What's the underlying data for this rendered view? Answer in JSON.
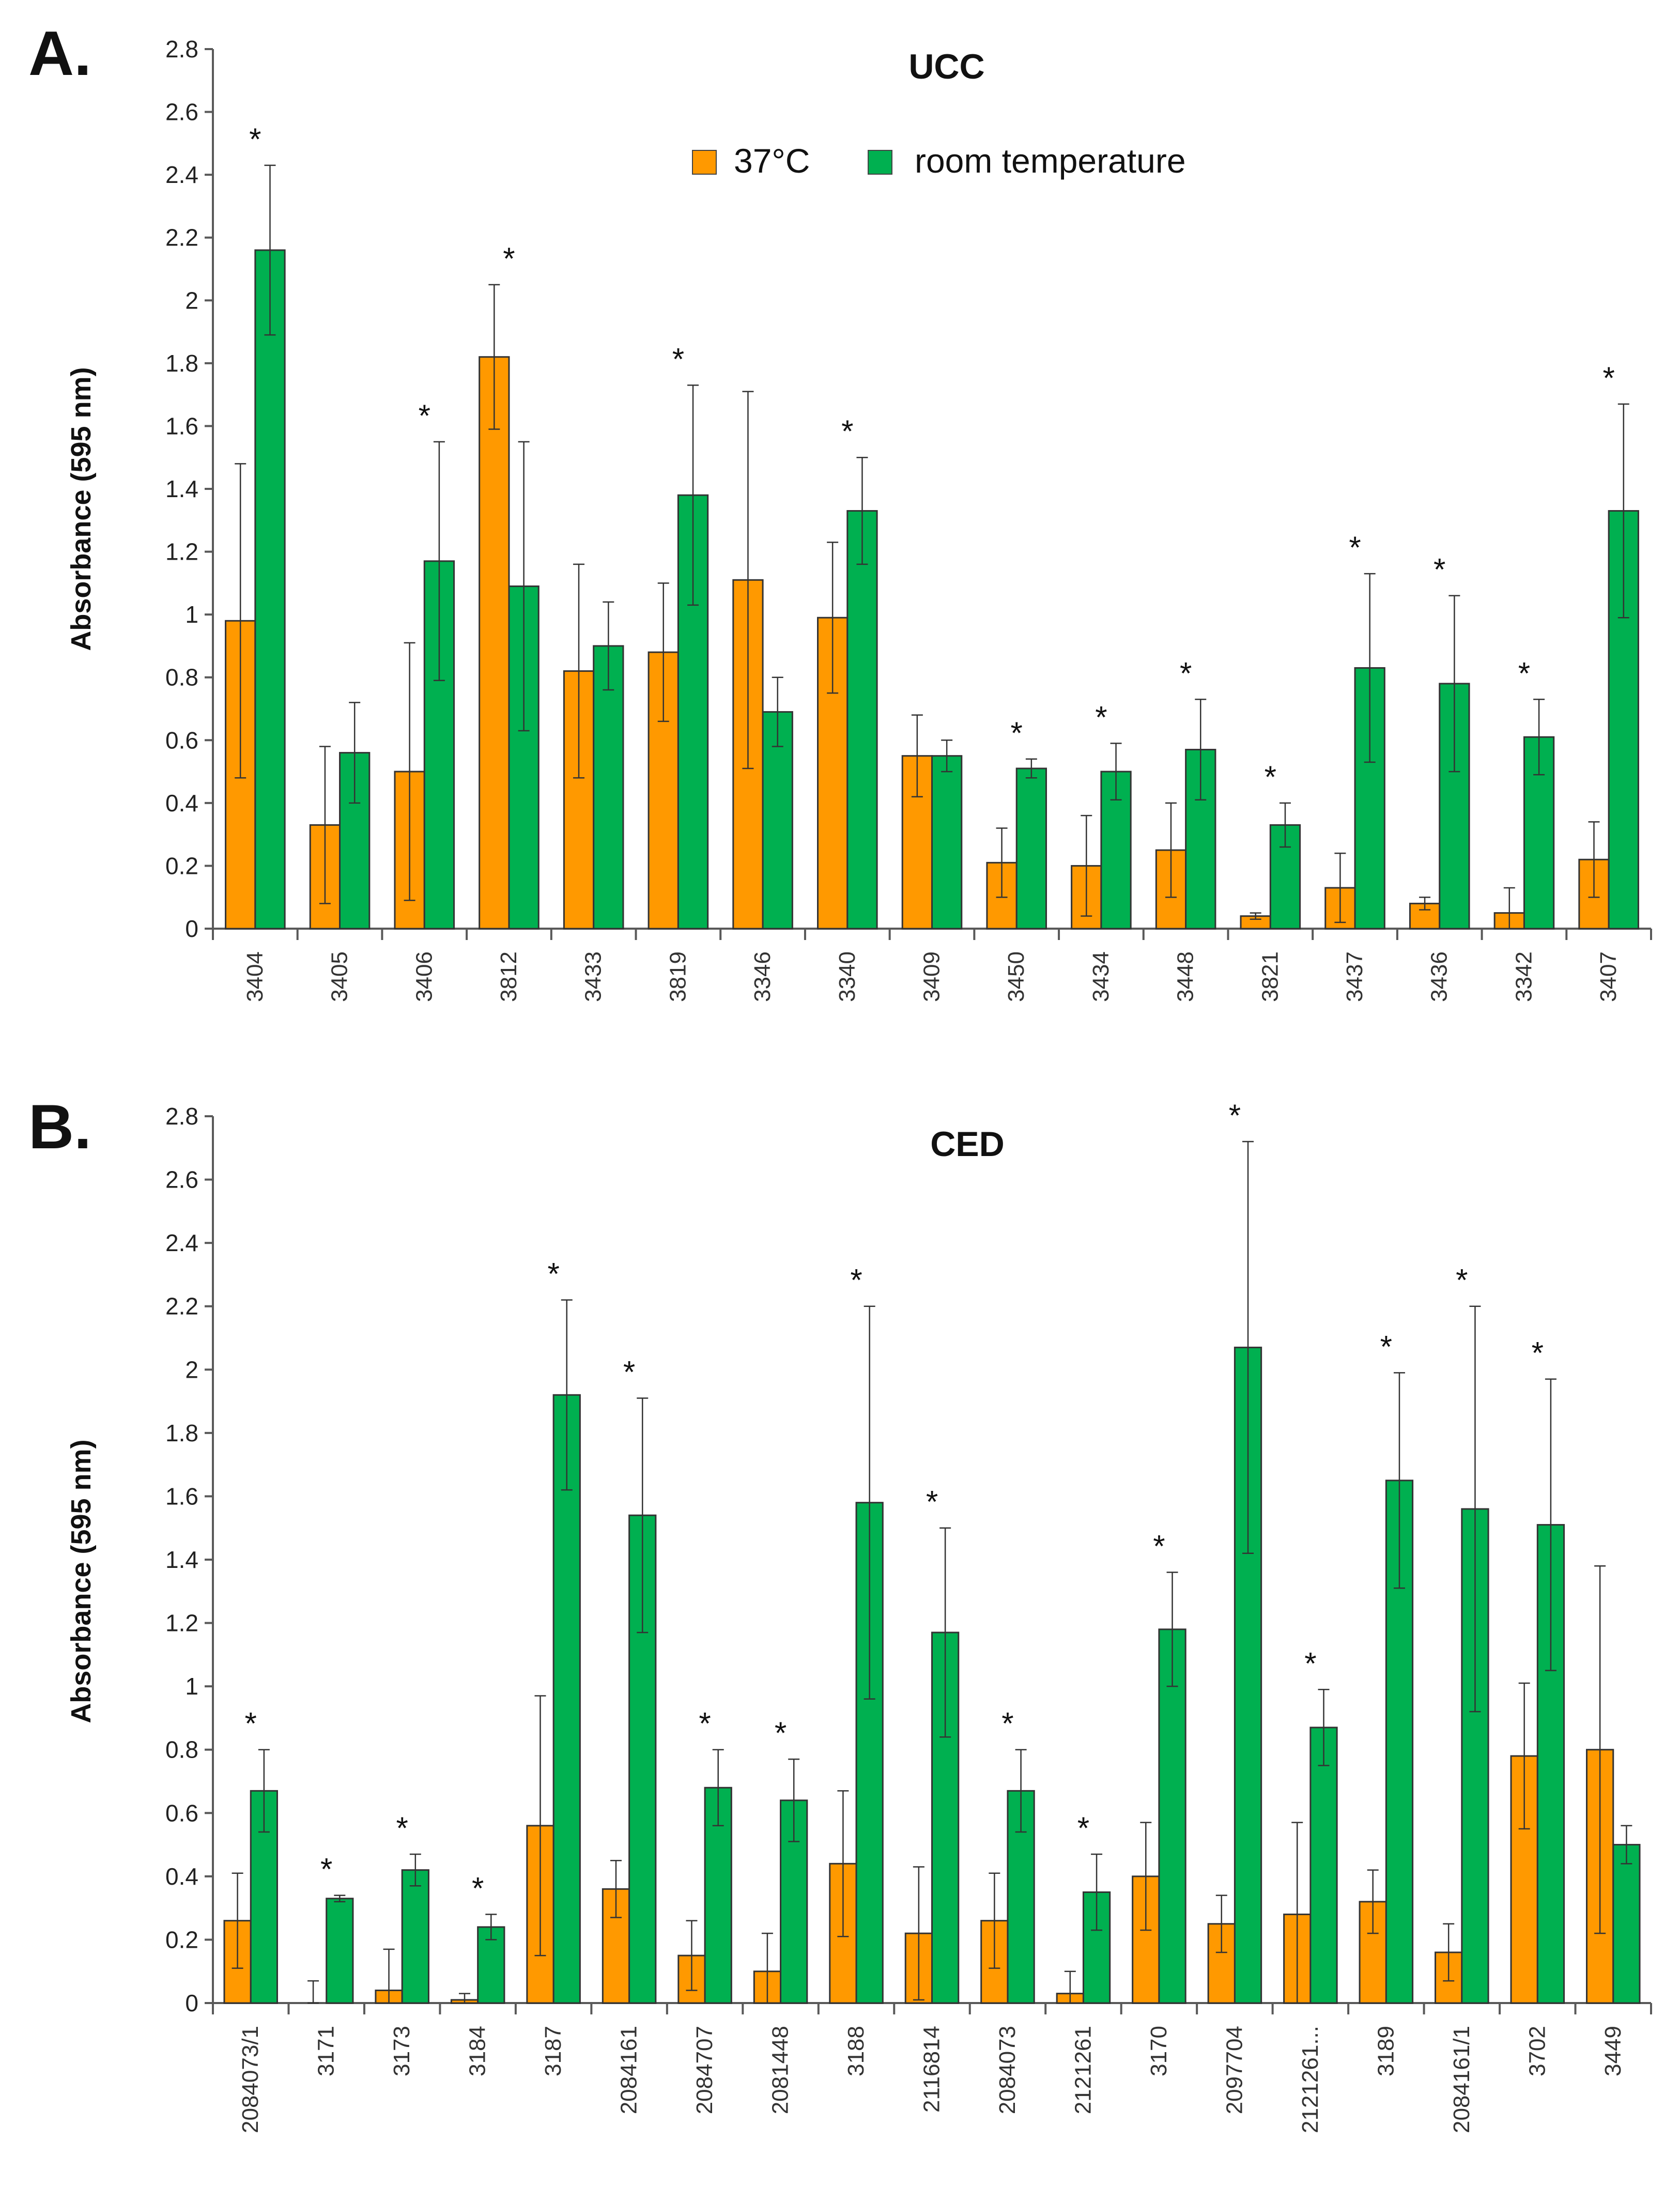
{
  "colors": {
    "s37": "#FF9900",
    "rt": "#00B050",
    "axis": "#595959",
    "err": "#333333"
  },
  "legend": {
    "items": [
      {
        "label": "37°C",
        "color": "#FF9900"
      },
      {
        "label": "room temperature",
        "color": "#00B050"
      }
    ]
  },
  "chart_data": [
    {
      "type": "bar",
      "panel": "A.",
      "title": "UCC",
      "ylabel": "Absorbance (595 nm)",
      "xlabel": "",
      "ylim": [
        0,
        2.8
      ],
      "yticks": [
        "0",
        "0.2",
        "0.4",
        "0.6",
        "0.8",
        "1",
        "1.2",
        "1.4",
        "1.6",
        "1.8",
        "2",
        "2.2",
        "2.4",
        "2.6",
        "2.8"
      ],
      "categories": [
        "3404",
        "3405",
        "3406",
        "3812",
        "3433",
        "3819",
        "3346",
        "3340",
        "3409",
        "3450",
        "3434",
        "3448",
        "3821",
        "3437",
        "3436",
        "3342",
        "3407"
      ],
      "series": [
        {
          "name": "37°C",
          "values": [
            0.98,
            0.33,
            0.5,
            1.82,
            0.82,
            0.88,
            1.11,
            0.99,
            0.55,
            0.21,
            0.2,
            0.25,
            0.04,
            0.13,
            0.08,
            0.05,
            0.22
          ],
          "errors": [
            0.5,
            0.25,
            0.41,
            0.23,
            0.34,
            0.22,
            0.6,
            0.24,
            0.13,
            0.11,
            0.16,
            0.15,
            0.01,
            0.11,
            0.02,
            0.08,
            0.12
          ]
        },
        {
          "name": "room temperature",
          "values": [
            2.16,
            0.56,
            1.17,
            1.09,
            0.9,
            1.38,
            0.69,
            1.33,
            0.55,
            0.51,
            0.5,
            0.57,
            0.33,
            0.83,
            0.78,
            0.61,
            1.33
          ],
          "errors": [
            0.27,
            0.16,
            0.38,
            0.46,
            0.14,
            0.35,
            0.11,
            0.17,
            0.05,
            0.03,
            0.09,
            0.16,
            0.07,
            0.3,
            0.28,
            0.12,
            0.34
          ]
        }
      ],
      "significance": [
        true,
        false,
        true,
        true,
        false,
        true,
        false,
        true,
        false,
        true,
        true,
        true,
        true,
        true,
        true,
        true,
        true
      ],
      "significance_marker": "*"
    },
    {
      "type": "bar",
      "panel": "B.",
      "title": "CED",
      "ylabel": "Absorbance (595 nm)",
      "xlabel": "",
      "ylim": [
        0,
        2.8
      ],
      "yticks": [
        "0",
        "0.2",
        "0.4",
        "0.6",
        "0.8",
        "1",
        "1.2",
        "1.4",
        "1.6",
        "1.8",
        "2",
        "2.2",
        "2.4",
        "2.6",
        "2.8"
      ],
      "categories": [
        "2084073/1",
        "3171",
        "3173",
        "3184",
        "3187",
        "2084161",
        "2084707",
        "2081448",
        "3188",
        "2116814",
        "2084073",
        "2121261",
        "3170",
        "2097704",
        "2121261...",
        "3189",
        "2084161/1",
        "3702",
        "3449"
      ],
      "series": [
        {
          "name": "37°C",
          "values": [
            0.26,
            0.0,
            0.04,
            0.01,
            0.56,
            0.36,
            0.15,
            0.1,
            0.44,
            0.22,
            0.26,
            0.03,
            0.4,
            0.25,
            0.28,
            0.32,
            0.16,
            0.78,
            0.8
          ],
          "errors": [
            0.15,
            0.07,
            0.13,
            0.02,
            0.41,
            0.09,
            0.11,
            0.12,
            0.23,
            0.21,
            0.15,
            0.07,
            0.17,
            0.09,
            0.29,
            0.1,
            0.09,
            0.23,
            0.58
          ]
        },
        {
          "name": "room temperature",
          "values": [
            0.67,
            0.33,
            0.42,
            0.24,
            1.92,
            1.54,
            0.68,
            0.64,
            1.58,
            1.17,
            0.67,
            0.35,
            1.18,
            2.07,
            0.87,
            1.65,
            1.56,
            1.51,
            0.5
          ],
          "errors": [
            0.13,
            0.01,
            0.05,
            0.04,
            0.3,
            0.37,
            0.12,
            0.13,
            0.62,
            0.33,
            0.13,
            0.12,
            0.18,
            0.65,
            0.12,
            0.34,
            0.64,
            0.46,
            0.06
          ]
        }
      ],
      "significance": [
        true,
        true,
        true,
        true,
        true,
        true,
        true,
        true,
        true,
        true,
        true,
        true,
        true,
        true,
        true,
        true,
        true,
        true,
        false
      ],
      "significance_marker": "*"
    }
  ]
}
